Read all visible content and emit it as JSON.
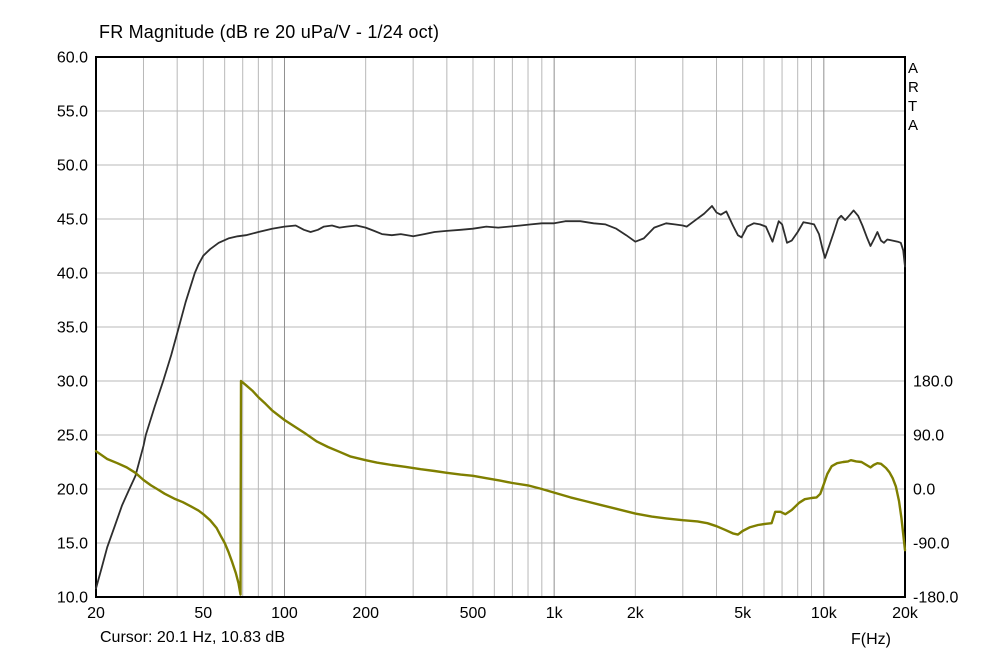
{
  "window": {
    "title": "FR Magnitude (dB re 20 uPa/V - 1/24 oct)",
    "cursor_status": "Cursor: 20.1 Hz, 10.83 dB",
    "x_axis_unit": "F(Hz)",
    "watermark_letters": [
      "A",
      "R",
      "T",
      "A"
    ]
  },
  "chart_data": {
    "type": "line",
    "title": "FR Magnitude (dB re 20 uPa/V - 1/24 oct)",
    "xlabel": "F(Hz)",
    "x_scale": "log",
    "x_min": 20,
    "x_max": 20000,
    "x_ticks": [
      {
        "label": "20",
        "value": 20
      },
      {
        "label": "50",
        "value": 50
      },
      {
        "label": "100",
        "value": 100
      },
      {
        "label": "200",
        "value": 200
      },
      {
        "label": "500",
        "value": 500
      },
      {
        "label": "1k",
        "value": 1000
      },
      {
        "label": "2k",
        "value": 2000
      },
      {
        "label": "5k",
        "value": 5000
      },
      {
        "label": "10k",
        "value": 10000
      },
      {
        "label": "20k",
        "value": 20000
      }
    ],
    "y_left": {
      "unit": "dB",
      "min": 10,
      "max": 60,
      "ticks": [
        {
          "label": "60.0",
          "value": 60
        },
        {
          "label": "55.0",
          "value": 55
        },
        {
          "label": "50.0",
          "value": 50
        },
        {
          "label": "45.0",
          "value": 45
        },
        {
          "label": "40.0",
          "value": 40
        },
        {
          "label": "35.0",
          "value": 35
        },
        {
          "label": "30.0",
          "value": 30
        },
        {
          "label": "25.0",
          "value": 25
        },
        {
          "label": "20.0",
          "value": 20
        },
        {
          "label": "15.0",
          "value": 15
        },
        {
          "label": "10.0",
          "value": 10
        }
      ]
    },
    "y_right": {
      "unit": "deg",
      "min": -180,
      "max": 180,
      "maps_to_left_units": [
        10,
        30
      ],
      "ticks": [
        {
          "label": "180.0",
          "value": 180
        },
        {
          "label": "90.0",
          "value": 90
        },
        {
          "label": "0.0",
          "value": 0
        },
        {
          "label": "-90.0",
          "value": -90
        },
        {
          "label": "-180.0",
          "value": -180
        }
      ]
    },
    "grid": {
      "on": true,
      "h_values": [
        15,
        20,
        25,
        30,
        35,
        40,
        45,
        50,
        55
      ],
      "v_values": [
        30,
        40,
        50,
        60,
        70,
        80,
        90,
        100,
        200,
        300,
        400,
        500,
        600,
        700,
        800,
        900,
        1000,
        2000,
        3000,
        4000,
        5000,
        6000,
        7000,
        8000,
        9000,
        10000
      ],
      "v_major": [
        100,
        1000,
        10000
      ],
      "minor_color": "#b8b8b8",
      "major_color": "#909090",
      "border_color": "#000000"
    },
    "series": [
      {
        "name": "magnitude",
        "unit": "dB",
        "axis": "left",
        "color": "#2e2e2e",
        "width": 1.8,
        "points": [
          [
            20,
            10.8
          ],
          [
            21,
            12.7
          ],
          [
            22,
            14.6
          ],
          [
            23.5,
            16.6
          ],
          [
            25,
            18.5
          ],
          [
            26.6,
            20.0
          ],
          [
            28,
            21.2
          ],
          [
            30,
            24.0
          ],
          [
            30.6,
            25.0
          ],
          [
            33,
            27.6
          ],
          [
            35.5,
            30.0
          ],
          [
            38,
            32.4
          ],
          [
            40.6,
            35.0
          ],
          [
            43,
            37.3
          ],
          [
            46.5,
            40.0
          ],
          [
            48,
            40.8
          ],
          [
            50,
            41.6
          ],
          [
            53,
            42.2
          ],
          [
            57,
            42.8
          ],
          [
            62,
            43.2
          ],
          [
            67,
            43.4
          ],
          [
            72,
            43.5
          ],
          [
            80,
            43.8
          ],
          [
            90,
            44.1
          ],
          [
            100,
            44.3
          ],
          [
            110,
            44.4
          ],
          [
            118,
            44.0
          ],
          [
            125,
            43.8
          ],
          [
            133,
            44.0
          ],
          [
            140,
            44.3
          ],
          [
            150,
            44.4
          ],
          [
            160,
            44.2
          ],
          [
            170,
            44.3
          ],
          [
            185,
            44.4
          ],
          [
            200,
            44.2
          ],
          [
            215,
            43.9
          ],
          [
            230,
            43.6
          ],
          [
            250,
            43.5
          ],
          [
            270,
            43.6
          ],
          [
            300,
            43.4
          ],
          [
            330,
            43.6
          ],
          [
            360,
            43.8
          ],
          [
            400,
            43.9
          ],
          [
            450,
            44.0
          ],
          [
            500,
            44.1
          ],
          [
            560,
            44.3
          ],
          [
            620,
            44.2
          ],
          [
            680,
            44.3
          ],
          [
            750,
            44.4
          ],
          [
            820,
            44.5
          ],
          [
            900,
            44.6
          ],
          [
            1000,
            44.6
          ],
          [
            1100,
            44.8
          ],
          [
            1250,
            44.8
          ],
          [
            1400,
            44.6
          ],
          [
            1550,
            44.5
          ],
          [
            1700,
            44.1
          ],
          [
            1850,
            43.5
          ],
          [
            2000,
            42.9
          ],
          [
            2150,
            43.2
          ],
          [
            2350,
            44.2
          ],
          [
            2600,
            44.6
          ],
          [
            2800,
            44.5
          ],
          [
            3000,
            44.4
          ],
          [
            3100,
            44.3
          ],
          [
            3300,
            44.8
          ],
          [
            3600,
            45.5
          ],
          [
            3850,
            46.2
          ],
          [
            4000,
            45.6
          ],
          [
            4150,
            45.4
          ],
          [
            4350,
            45.7
          ],
          [
            4600,
            44.4
          ],
          [
            4800,
            43.5
          ],
          [
            4950,
            43.3
          ],
          [
            5200,
            44.3
          ],
          [
            5500,
            44.6
          ],
          [
            5800,
            44.5
          ],
          [
            6100,
            44.3
          ],
          [
            6450,
            42.9
          ],
          [
            6800,
            44.8
          ],
          [
            7000,
            44.5
          ],
          [
            7300,
            42.8
          ],
          [
            7600,
            43.0
          ],
          [
            8000,
            43.8
          ],
          [
            8400,
            44.7
          ],
          [
            8800,
            44.6
          ],
          [
            9200,
            44.5
          ],
          [
            9600,
            43.6
          ],
          [
            9900,
            42.2
          ],
          [
            10100,
            41.4
          ],
          [
            10500,
            42.6
          ],
          [
            10900,
            43.8
          ],
          [
            11300,
            45.0
          ],
          [
            11600,
            45.3
          ],
          [
            12000,
            44.9
          ],
          [
            12500,
            45.4
          ],
          [
            12900,
            45.8
          ],
          [
            13400,
            45.3
          ],
          [
            13900,
            44.4
          ],
          [
            14500,
            43.2
          ],
          [
            14900,
            42.5
          ],
          [
            15400,
            43.2
          ],
          [
            15800,
            43.8
          ],
          [
            16300,
            43.0
          ],
          [
            16700,
            42.8
          ],
          [
            17200,
            43.1
          ],
          [
            18000,
            43.0
          ],
          [
            18800,
            42.9
          ],
          [
            19300,
            42.8
          ],
          [
            19700,
            42.1
          ],
          [
            20000,
            40.6
          ]
        ]
      },
      {
        "name": "phase",
        "unit": "deg",
        "axis": "right",
        "color": "#7f7f00",
        "width": 2.4,
        "points": [
          [
            20,
            63
          ],
          [
            22,
            50
          ],
          [
            24,
            43
          ],
          [
            26,
            36
          ],
          [
            28,
            27
          ],
          [
            30,
            15
          ],
          [
            32,
            6
          ],
          [
            34,
            -1
          ],
          [
            36,
            -8
          ],
          [
            39,
            -16
          ],
          [
            42,
            -22
          ],
          [
            45,
            -29
          ],
          [
            48,
            -36
          ],
          [
            50,
            -42
          ],
          [
            53,
            -52
          ],
          [
            56,
            -65
          ],
          [
            58,
            -78
          ],
          [
            60,
            -90
          ],
          [
            62,
            -105
          ],
          [
            64,
            -122
          ],
          [
            66,
            -140
          ],
          [
            67.5,
            -157
          ],
          [
            68.7,
            -176
          ],
          [
            69,
            180
          ],
          [
            72,
            173
          ],
          [
            76,
            164
          ],
          [
            80,
            153
          ],
          [
            85,
            142
          ],
          [
            90,
            131
          ],
          [
            100,
            115
          ],
          [
            110,
            103
          ],
          [
            120,
            92
          ],
          [
            132,
            79
          ],
          [
            145,
            70
          ],
          [
            160,
            62
          ],
          [
            176,
            54
          ],
          [
            200,
            48
          ],
          [
            220,
            44
          ],
          [
            250,
            40
          ],
          [
            280,
            37
          ],
          [
            320,
            33
          ],
          [
            360,
            30
          ],
          [
            400,
            27
          ],
          [
            450,
            24
          ],
          [
            500,
            22
          ],
          [
            560,
            18
          ],
          [
            630,
            14
          ],
          [
            700,
            10
          ],
          [
            800,
            6
          ],
          [
            900,
            0
          ],
          [
            1000,
            -6
          ],
          [
            1150,
            -14
          ],
          [
            1300,
            -20
          ],
          [
            1500,
            -27
          ],
          [
            1700,
            -33
          ],
          [
            2000,
            -41
          ],
          [
            2300,
            -46
          ],
          [
            2600,
            -49
          ],
          [
            3000,
            -52
          ],
          [
            3400,
            -54
          ],
          [
            3700,
            -57
          ],
          [
            4000,
            -62
          ],
          [
            4300,
            -68
          ],
          [
            4600,
            -74
          ],
          [
            4800,
            -76
          ],
          [
            5000,
            -70
          ],
          [
            5300,
            -64
          ],
          [
            5700,
            -60
          ],
          [
            6100,
            -58
          ],
          [
            6400,
            -57
          ],
          [
            6600,
            -38
          ],
          [
            6900,
            -38
          ],
          [
            7200,
            -42
          ],
          [
            7600,
            -35
          ],
          [
            8100,
            -23
          ],
          [
            8500,
            -17
          ],
          [
            9000,
            -15
          ],
          [
            9400,
            -14
          ],
          [
            9700,
            -8
          ],
          [
            10000,
            8
          ],
          [
            10300,
            25
          ],
          [
            10700,
            38
          ],
          [
            11200,
            43
          ],
          [
            11800,
            45
          ],
          [
            12300,
            46
          ],
          [
            12600,
            48
          ],
          [
            13200,
            46
          ],
          [
            13800,
            45
          ],
          [
            14400,
            40
          ],
          [
            14900,
            36
          ],
          [
            15300,
            40
          ],
          [
            15800,
            43
          ],
          [
            16300,
            42
          ],
          [
            17000,
            35
          ],
          [
            17500,
            28
          ],
          [
            18000,
            18
          ],
          [
            18500,
            4
          ],
          [
            19000,
            -20
          ],
          [
            19400,
            -48
          ],
          [
            19700,
            -75
          ],
          [
            20000,
            -102
          ]
        ]
      }
    ]
  }
}
